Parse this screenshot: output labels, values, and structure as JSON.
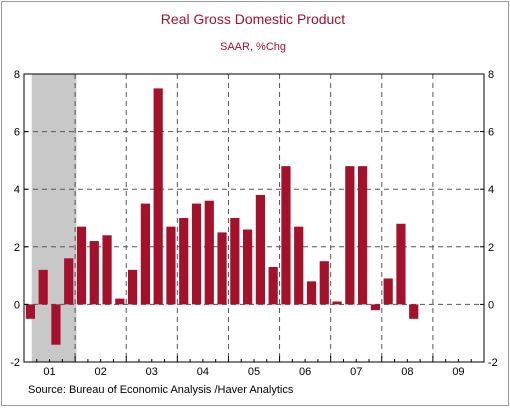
{
  "chart_data": {
    "type": "bar",
    "title": "Real Gross Domestic Product",
    "subtitle": "SAAR, %Chg",
    "source": "Source:  Bureau of Economic Analysis /Haver Analytics",
    "ylim": [
      -2,
      8
    ],
    "yticks": [
      -2,
      0,
      2,
      4,
      6,
      8
    ],
    "ytick_labels": [
      "-2",
      "0",
      "2",
      "4",
      "6",
      "8"
    ],
    "years": [
      "01",
      "02",
      "03",
      "04",
      "05",
      "06",
      "07",
      "08",
      "09"
    ],
    "quarters": [
      "2001Q1",
      "2001Q2",
      "2001Q3",
      "2001Q4",
      "2002Q1",
      "2002Q2",
      "2002Q3",
      "2002Q4",
      "2003Q1",
      "2003Q2",
      "2003Q3",
      "2003Q4",
      "2004Q1",
      "2004Q2",
      "2004Q3",
      "2004Q4",
      "2005Q1",
      "2005Q2",
      "2005Q3",
      "2005Q4",
      "2006Q1",
      "2006Q2",
      "2006Q3",
      "2006Q4",
      "2007Q1",
      "2007Q2",
      "2007Q3",
      "2007Q4",
      "2008Q1",
      "2008Q2",
      "2008Q3",
      "2008Q4",
      "2009Q1",
      "2009Q2",
      "2009Q3",
      "2009Q4"
    ],
    "values": [
      -0.5,
      1.2,
      -1.4,
      1.6,
      2.7,
      2.2,
      2.4,
      0.2,
      1.2,
      3.5,
      7.5,
      2.7,
      3.0,
      3.5,
      3.6,
      2.5,
      3.0,
      2.6,
      3.8,
      1.3,
      4.8,
      2.7,
      0.8,
      1.5,
      0.1,
      4.8,
      4.8,
      -0.2,
      0.9,
      2.8,
      -0.5,
      null,
      null,
      null,
      null,
      null
    ],
    "recession": {
      "start": "2001Q1",
      "end": "2001Q4"
    },
    "grid": true,
    "colors": {
      "bar": "#a3112b",
      "title": "#a3112b",
      "recession": "#c8c8c8",
      "grid": "#555555",
      "axis": "#000000"
    }
  }
}
